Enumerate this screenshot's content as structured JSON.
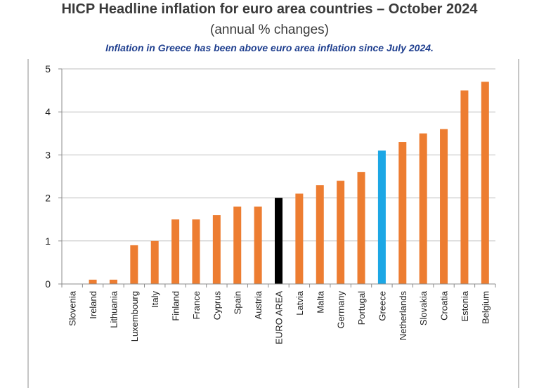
{
  "title": "HICP Headline inflation for euro area countries – October 2024",
  "subtitle": "(annual % changes)",
  "note": "Inflation in Greece has been above euro area inflation since July 2024.",
  "colors": {
    "default": "#ED7D31",
    "euro_area": "#000000",
    "greece": "#1CA7E5",
    "grid": "#bfbfbf",
    "frame": "#8c8c8c"
  },
  "chart_data": {
    "type": "bar",
    "title": "HICP Headline inflation for euro area countries – October 2024",
    "subtitle": "(annual % changes)",
    "xlabel": "",
    "ylabel": "",
    "ylim": [
      0,
      5
    ],
    "yticks": [
      0,
      1,
      2,
      3,
      4,
      5
    ],
    "grid": true,
    "categories": [
      "Slovenia",
      "Ireland",
      "Lithuania",
      "Luxembourg",
      "Italy",
      "Finland",
      "France",
      "Cyprus",
      "Spain",
      "Austria",
      "EURO AREA",
      "Latvia",
      "Malta",
      "Germany",
      "Portugal",
      "Greece",
      "Netherlands",
      "Slovakia",
      "Croatia",
      "Estonia",
      "Belgium"
    ],
    "values": [
      0.0,
      0.1,
      0.1,
      0.9,
      1.0,
      1.5,
      1.5,
      1.6,
      1.8,
      1.8,
      2.0,
      2.1,
      2.3,
      2.4,
      2.6,
      3.1,
      3.3,
      3.5,
      3.6,
      4.5,
      4.7
    ],
    "highlight": {
      "EURO AREA": "euro_area",
      "Greece": "greece"
    }
  }
}
